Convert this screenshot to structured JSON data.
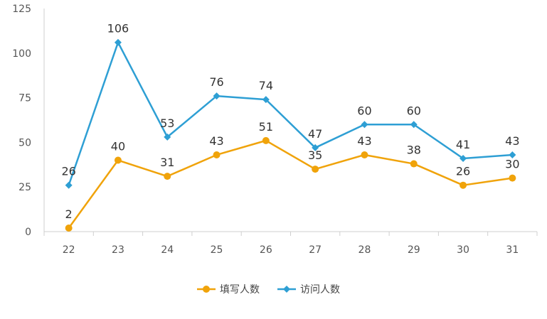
{
  "chart_data": {
    "type": "line",
    "title": "",
    "xlabel": "",
    "ylabel": "",
    "x": [
      "22",
      "23",
      "24",
      "25",
      "26",
      "27",
      "28",
      "29",
      "30",
      "31"
    ],
    "ylim": [
      0,
      125
    ],
    "yticks": [
      "0",
      "25",
      "50",
      "75",
      "100",
      "125"
    ],
    "grid": false,
    "legend": "bottom",
    "series": [
      {
        "name": "填写人数",
        "color": "#f0a30a",
        "marker": "circle",
        "values": [
          2,
          40,
          31,
          43,
          51,
          35,
          43,
          38,
          26,
          30
        ],
        "labels": [
          "2",
          "40",
          "31",
          "43",
          "51",
          "35",
          "43",
          "38",
          "26",
          "30"
        ]
      },
      {
        "name": "访问人数",
        "color": "#2e9fd4",
        "marker": "diamond",
        "values": [
          26,
          106,
          53,
          76,
          74,
          47,
          60,
          60,
          41,
          43
        ],
        "labels": [
          "26",
          "106",
          "53",
          "76",
          "74",
          "47",
          "60",
          "60",
          "41",
          "43"
        ]
      }
    ]
  }
}
